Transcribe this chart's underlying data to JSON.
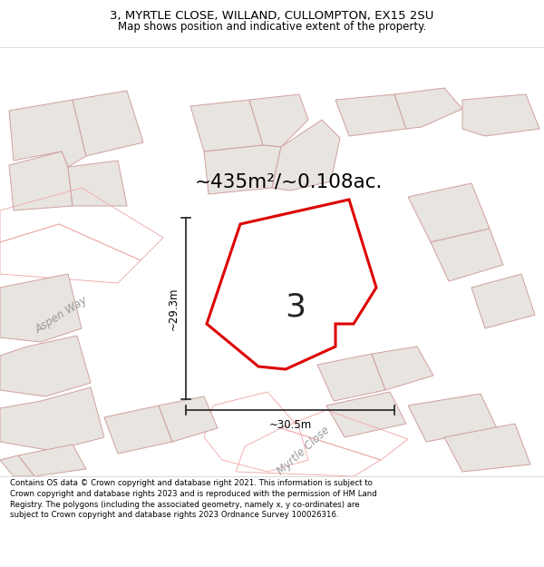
{
  "title_line1": "3, MYRTLE CLOSE, WILLAND, CULLOMPTON, EX15 2SU",
  "title_line2": "Map shows position and indicative extent of the property.",
  "area_text": "~435m²/~0.108ac.",
  "label_number": "3",
  "dim_horizontal": "~30.5m",
  "dim_vertical": "~29.3m",
  "road_label_aspen": "Aspen Way",
  "road_label_myrtle": "Myrtle Close",
  "footer_text": "Contains OS data © Crown copyright and database right 2021. This information is subject to Crown copyright and database rights 2023 and is reproduced with the permission of HM Land Registry. The polygons (including the associated geometry, namely x, y co-ordinates) are subject to Crown copyright and database rights 2023 Ordnance Survey 100026316.",
  "map_bg": "#ffffff",
  "plot_color": "#dd0000",
  "road_line_color": "#f0b0b0",
  "building_fill": "#e8e4e0",
  "building_edge": "#d0a0a0",
  "title_area_bg": "#ffffff",
  "footer_bg": "#ffffff",
  "dim_line_color": "#222222",
  "road_label_color": "#999999",
  "number_label_color": "#222222"
}
